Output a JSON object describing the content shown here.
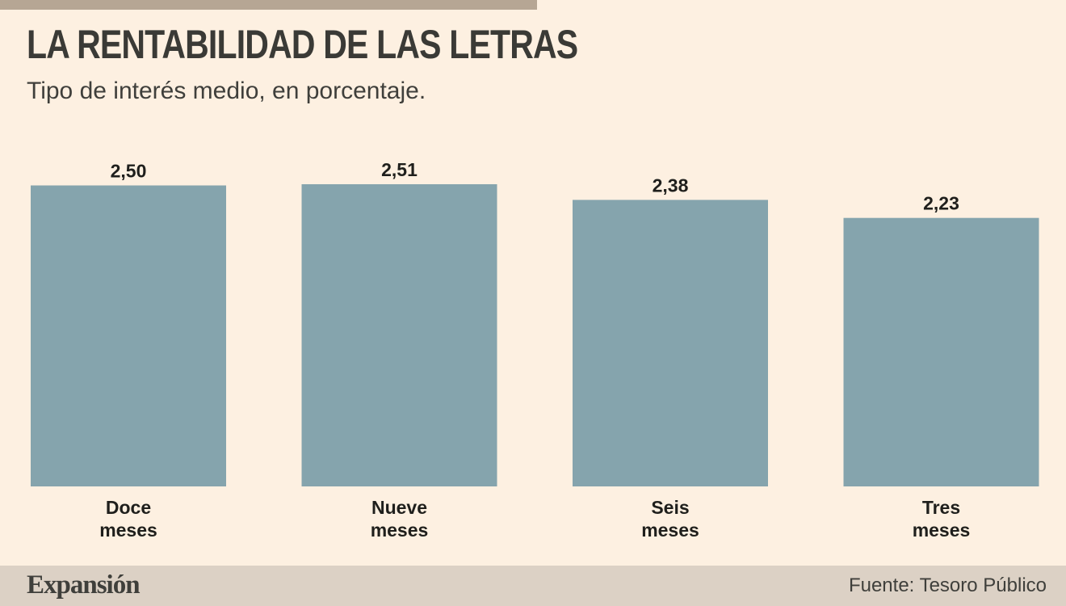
{
  "title": "LA RENTABILIDAD DE LAS LETRAS",
  "subtitle": "Tipo de interés medio, en porcentaje.",
  "brand": "Expansión",
  "source": "Fuente: Tesoro Público",
  "colors": {
    "background": "#fdf0e1",
    "bar": "#85a4ad",
    "footer": "#dcd1c5",
    "top_bar": "#b6a694"
  },
  "chart_data": {
    "type": "bar",
    "categories": [
      [
        "Doce",
        "meses"
      ],
      [
        "Nueve",
        "meses"
      ],
      [
        "Seis",
        "meses"
      ],
      [
        "Tres",
        "meses"
      ]
    ],
    "values": [
      2.5,
      2.51,
      2.38,
      2.23
    ],
    "value_labels": [
      "2,50",
      "2,51",
      "2,38",
      "2,23"
    ],
    "title": "LA RENTABILIDAD DE LAS LETRAS",
    "subtitle": "Tipo de interés medio, en porcentaje.",
    "xlabel": "",
    "ylabel": "",
    "ylim": [
      0,
      2.51
    ],
    "grid": false,
    "legend": "none"
  }
}
